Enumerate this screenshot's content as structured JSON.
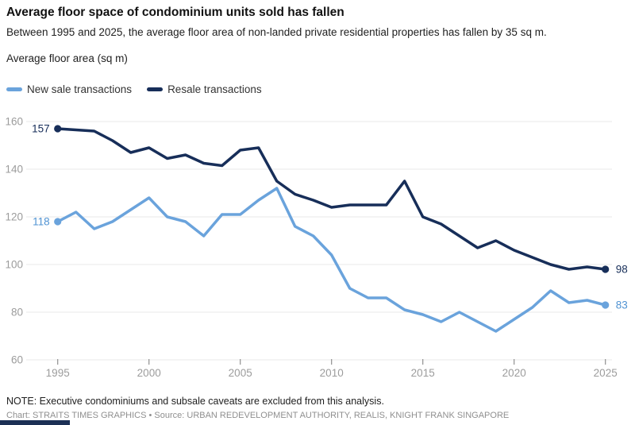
{
  "header": {
    "title": "Average floor space of condominium units sold has fallen",
    "subtitle": "Between 1995 and 2025, the average floor area of non-landed private residential properties has fallen by 35 sq m."
  },
  "legend": [
    {
      "label": "New sale transactions",
      "color": "#6AA3DC"
    },
    {
      "label": "Resale transactions",
      "color": "#172E59"
    }
  ],
  "chart_data": {
    "type": "line",
    "title": "Average floor space of condominium units sold has fallen",
    "xlabel": "",
    "ylabel": "Average floor area (sq m)",
    "x": [
      1995,
      1996,
      1997,
      1998,
      1999,
      2000,
      2001,
      2002,
      2003,
      2004,
      2005,
      2006,
      2007,
      2008,
      2009,
      2010,
      2011,
      2012,
      2013,
      2014,
      2015,
      2016,
      2017,
      2018,
      2019,
      2020,
      2021,
      2022,
      2023,
      2024,
      2025
    ],
    "series": [
      {
        "name": "New sale transactions",
        "color": "#6AA3DC",
        "values": [
          118,
          122,
          115,
          118,
          123,
          128,
          120,
          118,
          112,
          121,
          121,
          127,
          132,
          116,
          112,
          104,
          90,
          86,
          86,
          81,
          79,
          76,
          80,
          76,
          72,
          77,
          82,
          89,
          84,
          85,
          83
        ]
      },
      {
        "name": "Resale transactions",
        "color": "#172E59",
        "values": [
          157,
          156.5,
          156,
          152,
          147,
          149,
          144.5,
          146,
          142.5,
          141.5,
          148,
          149,
          135,
          129.5,
          127,
          124,
          125,
          125,
          125,
          135,
          120,
          117,
          112,
          107,
          110,
          106,
          103,
          100,
          98,
          99,
          98
        ]
      }
    ],
    "ylim": [
      60,
      160
    ],
    "yticks": [
      60,
      80,
      100,
      120,
      140,
      160
    ],
    "xticks": [
      1995,
      2000,
      2005,
      2010,
      2015,
      2020,
      2025
    ],
    "grid": true,
    "legend_position": "top",
    "annotations": [
      {
        "position": "start",
        "year": 1995,
        "value": 157,
        "label": "157",
        "color": "#172E59"
      },
      {
        "position": "start",
        "year": 1995,
        "value": 118,
        "label": "118",
        "color": "#5093D3"
      },
      {
        "position": "end",
        "year": 2025,
        "value": 98,
        "label": "98",
        "color": "#172E59"
      },
      {
        "position": "end",
        "year": 2025,
        "value": 83,
        "label": "83",
        "color": "#5093D3"
      }
    ]
  },
  "footer": {
    "note": "NOTE: Executive condominiums and subsale caveats are excluded from this analysis.",
    "credit": "Chart: STRAITS TIMES GRAPHICS • Source: URBAN REDEVELOPMENT AUTHORITY, REALIS, KNIGHT FRANK SINGAPORE"
  },
  "colors": {
    "grid": "#E8E8E8",
    "tick": "#909090",
    "tick_label": "#9C9C9C",
    "background": "#FFFFFF"
  }
}
